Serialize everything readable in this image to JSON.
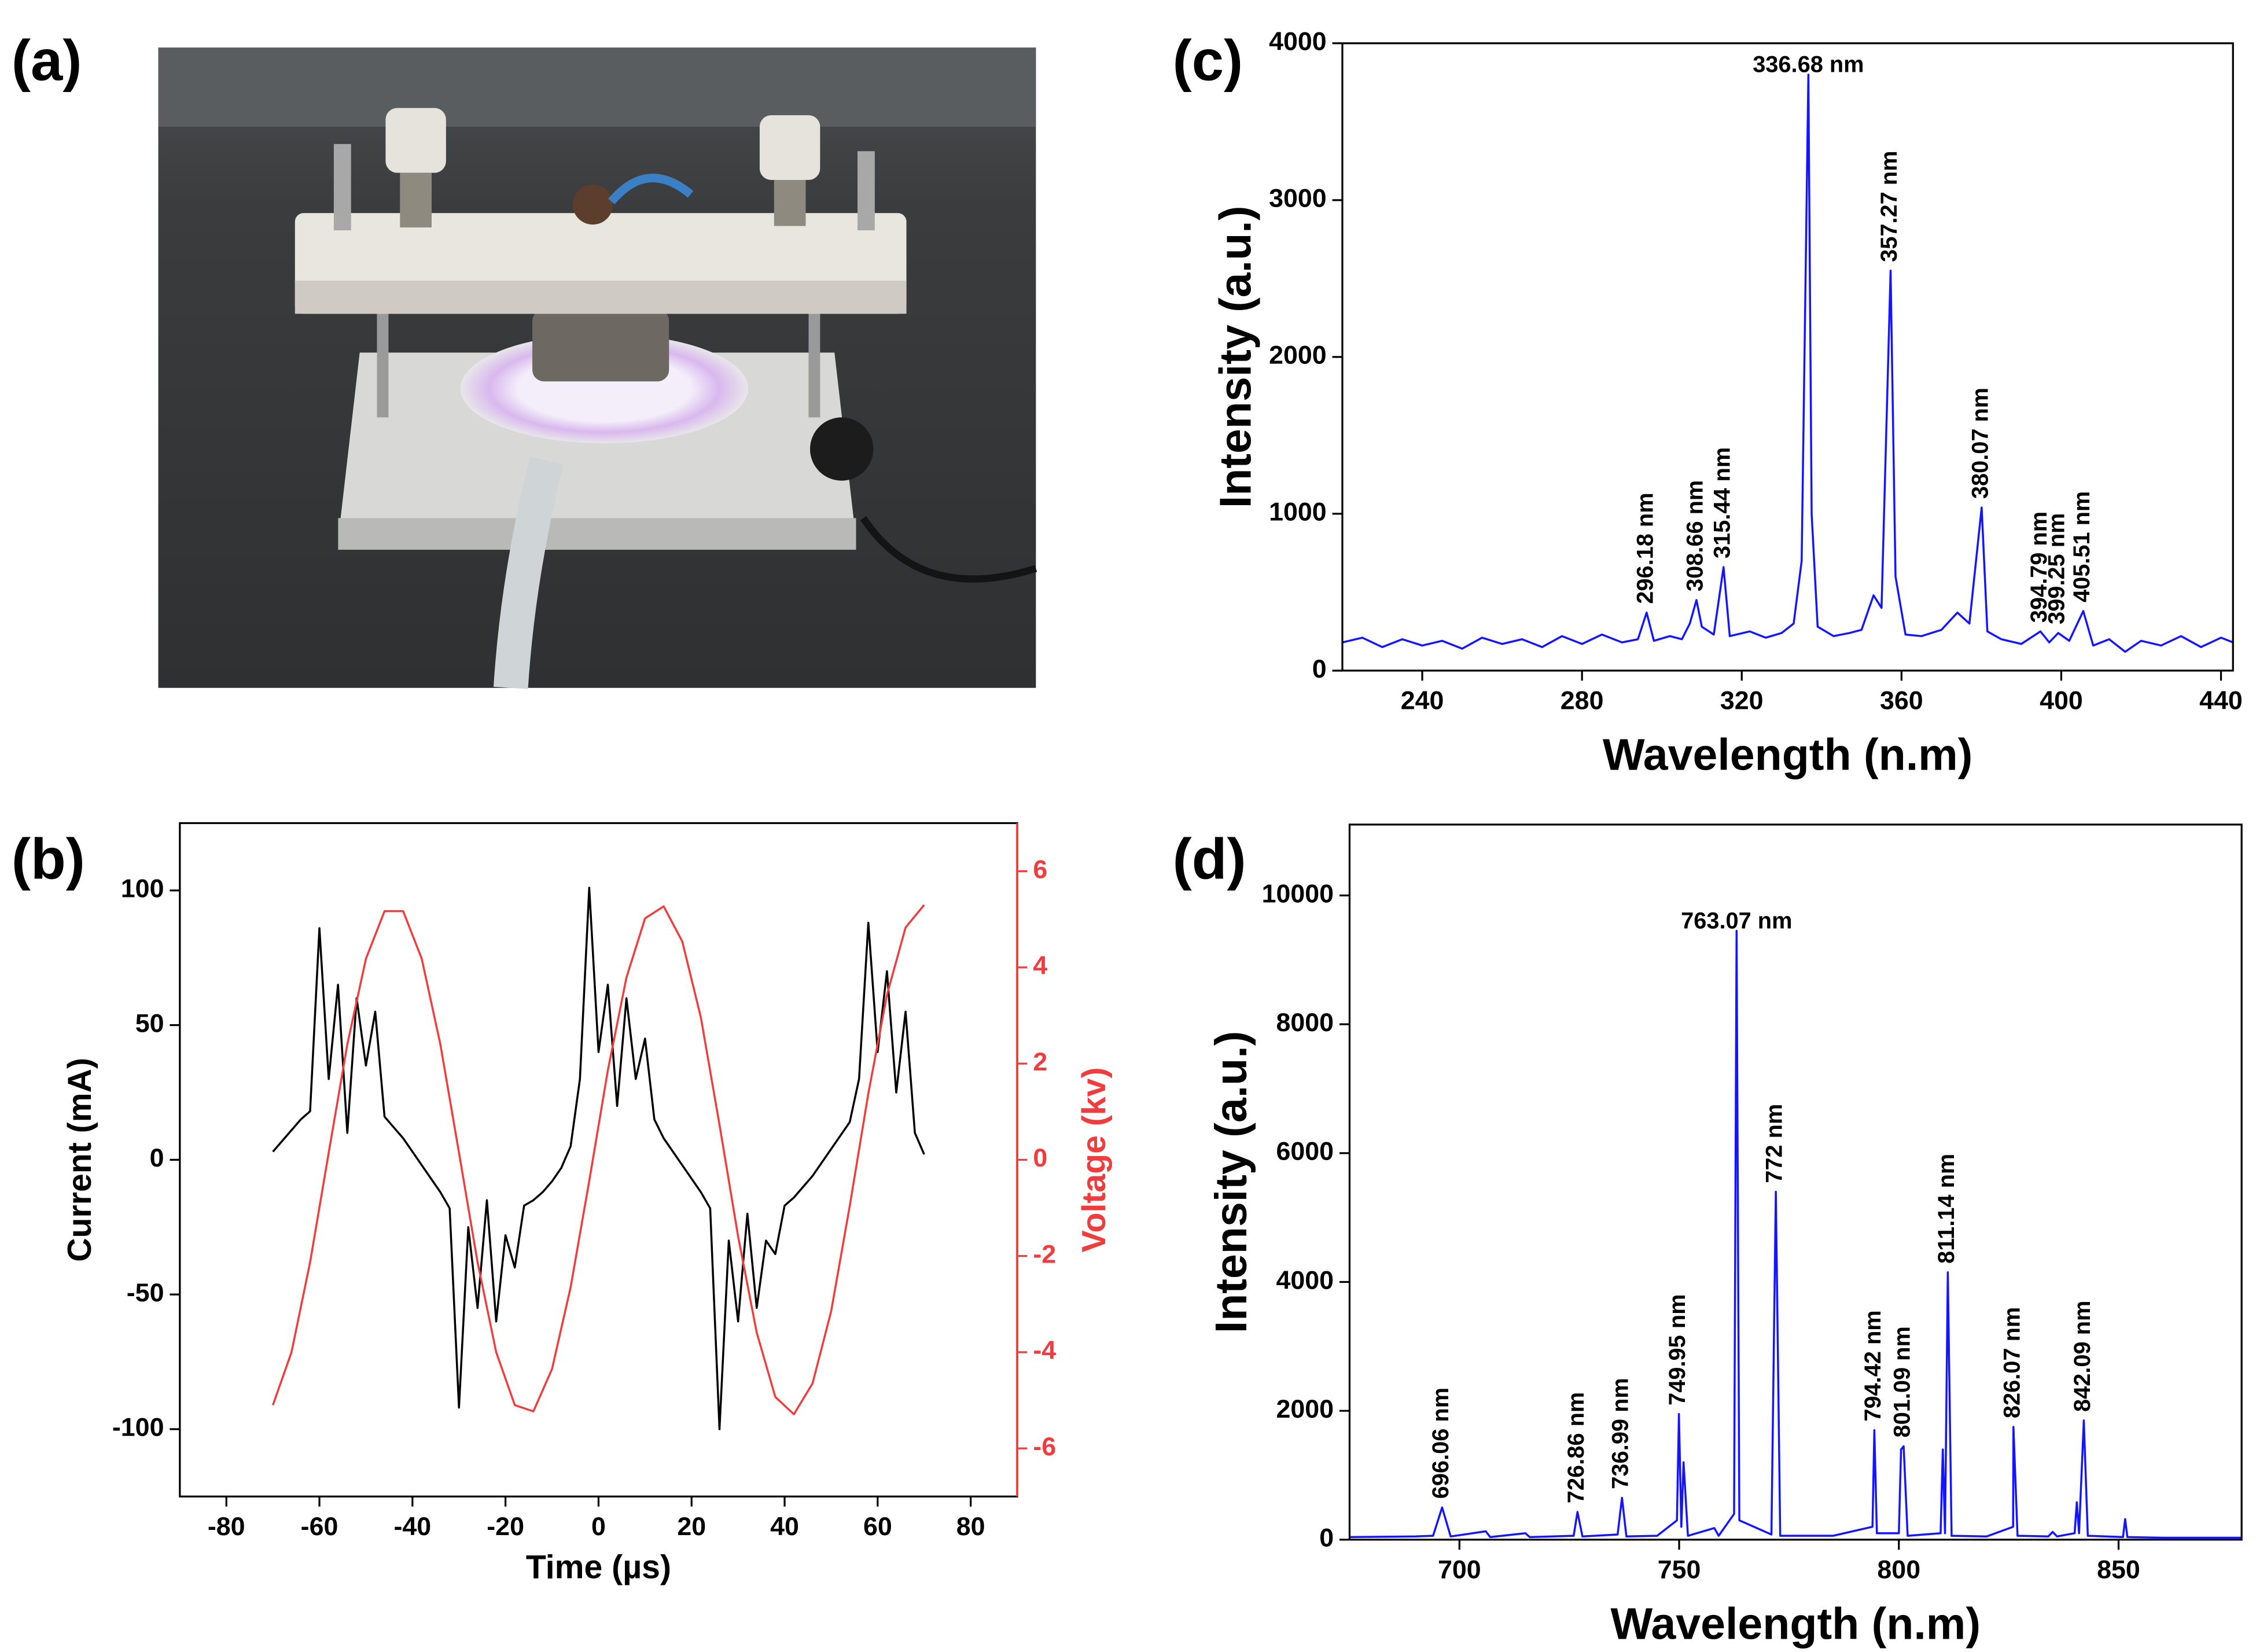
{
  "chart_data": [
    {
      "type": "photo",
      "label": "(a)"
    },
    {
      "type": "line",
      "label": "(b)",
      "xlabel": "Time (µs)",
      "ylabel": "Current (mA)",
      "y2label": "Voltage (kv)",
      "xlim": [
        -90,
        90
      ],
      "xticks": [
        -80,
        -60,
        -40,
        -20,
        0,
        20,
        40,
        60,
        80
      ],
      "ylim": [
        -125,
        125
      ],
      "yticks": [
        -100,
        -50,
        0,
        50,
        100
      ],
      "y2lim": [
        -7,
        7
      ],
      "y2ticks": [
        -6,
        -4,
        -2,
        0,
        2,
        4,
        6
      ],
      "series": [
        {
          "name": "Current",
          "color": "#000000",
          "x": [
            -70,
            -68,
            -66,
            -64,
            -62,
            -60,
            -58,
            -56,
            -54,
            -52,
            -50,
            -48,
            -46,
            -44,
            -42,
            -40,
            -38,
            -36,
            -34,
            -32,
            -30,
            -28,
            -26,
            -24,
            -22,
            -20,
            -18,
            -16,
            -14,
            -12,
            -10,
            -8,
            -6,
            -4,
            -2,
            0,
            2,
            4,
            6,
            8,
            10,
            12,
            14,
            16,
            18,
            20,
            22,
            24,
            26,
            28,
            30,
            32,
            34,
            36,
            38,
            40,
            42,
            44,
            46,
            48,
            50,
            52,
            54,
            56,
            58,
            60,
            62,
            64,
            66,
            68,
            70
          ],
          "values": [
            3,
            7,
            11,
            15,
            18,
            86,
            30,
            65,
            10,
            60,
            35,
            55,
            16,
            12,
            8,
            3,
            -2,
            -7,
            -12,
            -18,
            -92,
            -25,
            -55,
            -15,
            -60,
            -28,
            -40,
            -17,
            -15,
            -12,
            -8,
            -3,
            5,
            30,
            101,
            40,
            65,
            20,
            60,
            30,
            45,
            15,
            8,
            3,
            -2,
            -7,
            -12,
            -18,
            -100,
            -30,
            -60,
            -20,
            -55,
            -30,
            -35,
            -17,
            -14,
            -10,
            -6,
            -1,
            4,
            9,
            14,
            30,
            88,
            40,
            70,
            25,
            55,
            10,
            2
          ]
        },
        {
          "name": "Voltage",
          "color": "#f03c3c",
          "axis": "y2",
          "x": [
            -70,
            -66,
            -62,
            -58,
            -54,
            -50,
            -46,
            -42,
            -38,
            -34,
            -30,
            -26,
            -22,
            -18,
            -14,
            -10,
            -6,
            -2,
            2,
            6,
            10,
            14,
            18,
            22,
            26,
            30,
            34,
            38,
            42,
            46,
            50,
            54,
            58,
            62,
            66,
            70
          ],
          "values": [
            -5.1,
            -4.0,
            -2.13,
            0.15,
            2.4,
            4.18,
            5.17,
            5.17,
            4.18,
            2.4,
            0.15,
            -2.13,
            -4.0,
            -5.1,
            -5.23,
            -4.35,
            -2.65,
            -0.44,
            1.86,
            3.79,
            5.02,
            5.27,
            4.54,
            2.96,
            0.73,
            -1.59,
            -3.59,
            -4.93,
            -5.29,
            -4.65,
            -3.15,
            -0.96,
            1.38,
            3.43,
            4.83,
            5.3
          ]
        }
      ]
    },
    {
      "type": "line",
      "label": "(c)",
      "xlabel": "Wavelength (n.m)",
      "ylabel": "Intensity (a.u.)",
      "xlim": [
        220,
        443
      ],
      "xticks": [
        240,
        280,
        320,
        360,
        400,
        440
      ],
      "ylim": [
        0,
        4000
      ],
      "yticks": [
        0,
        1000,
        2000,
        3000,
        4000
      ],
      "series": [
        {
          "name": "Spectrum",
          "color": "#1414ff",
          "x": [
            220,
            225,
            230,
            235,
            240,
            245,
            250,
            255,
            260,
            265,
            270,
            275,
            280,
            285,
            290,
            294,
            296.18,
            298,
            302,
            305,
            307,
            308.66,
            310,
            313,
            315.44,
            317,
            322,
            326,
            330,
            333,
            335,
            336.68,
            337.5,
            339,
            343,
            347,
            350,
            353,
            355,
            357.27,
            358.5,
            361,
            365,
            370,
            374,
            377,
            380.07,
            381.5,
            385,
            390,
            394.79,
            397,
            399.25,
            402,
            405.51,
            408,
            412,
            416,
            420,
            425,
            430,
            435,
            440,
            443
          ],
          "values": [
            180,
            210,
            150,
            200,
            160,
            190,
            140,
            210,
            170,
            200,
            150,
            220,
            170,
            230,
            180,
            200,
            370,
            190,
            220,
            200,
            300,
            450,
            280,
            230,
            660,
            220,
            250,
            210,
            240,
            300,
            700,
            3800,
            1000,
            280,
            220,
            240,
            260,
            480,
            400,
            2550,
            600,
            230,
            220,
            260,
            370,
            300,
            1040,
            250,
            200,
            170,
            250,
            180,
            240,
            190,
            380,
            160,
            200,
            120,
            190,
            160,
            220,
            150,
            210,
            180
          ]
        }
      ],
      "annotations": [
        {
          "text": "336.68 nm",
          "x": 336.68,
          "y": 3800,
          "orientation": "horizontal"
        },
        {
          "text": "296.18 nm",
          "x": 296.18,
          "y": 370
        },
        {
          "text": "308.66 nm",
          "x": 308.66,
          "y": 450
        },
        {
          "text": "315.44 nm",
          "x": 315.44,
          "y": 660
        },
        {
          "text": "357.27 nm",
          "x": 357.27,
          "y": 2550
        },
        {
          "text": "380.07 nm",
          "x": 380.07,
          "y": 1040
        },
        {
          "text": "394.79 nm",
          "x": 394.79,
          "y": 250
        },
        {
          "text": "399.25 nm",
          "x": 399.25,
          "y": 240
        },
        {
          "text": "405.51 nm",
          "x": 405.51,
          "y": 380
        }
      ]
    },
    {
      "type": "line",
      "label": "(d)",
      "xlabel": "Wavelength (n.m)",
      "ylabel": "Intensity (a.u.)",
      "xlim": [
        675,
        878
      ],
      "xticks": [
        700,
        750,
        800,
        850
      ],
      "ylim": [
        0,
        11100
      ],
      "yticks": [
        0,
        2000,
        4000,
        6000,
        8000,
        10000
      ],
      "series": [
        {
          "name": "Spectrum",
          "color": "#1414ff",
          "x": [
            675,
            690,
            694,
            696.06,
            698,
            706,
            707,
            715,
            716,
            726,
            726.86,
            728,
            736,
            736.99,
            738,
            745,
            749.5,
            749.95,
            750.5,
            751,
            752,
            758,
            759,
            762.5,
            763.07,
            763.7,
            771,
            772,
            773,
            785,
            794,
            794.42,
            795,
            800,
            800.5,
            801.09,
            802,
            809.5,
            810,
            810.5,
            811.14,
            812,
            820,
            826,
            826.07,
            827,
            834,
            835,
            836,
            840,
            840.5,
            841,
            842.09,
            843,
            851,
            851.5,
            852,
            860,
            878
          ],
          "values": [
            40,
            50,
            60,
            500,
            50,
            130,
            40,
            100,
            40,
            60,
            430,
            50,
            80,
            650,
            50,
            60,
            300,
            1950,
            200,
            1200,
            60,
            180,
            60,
            400,
            9450,
            300,
            80,
            5400,
            60,
            60,
            200,
            1700,
            100,
            100,
            1400,
            1450,
            60,
            100,
            1400,
            100,
            4150,
            60,
            50,
            200,
            1750,
            60,
            50,
            120,
            50,
            100,
            580,
            100,
            1850,
            60,
            40,
            320,
            40,
            30,
            30
          ]
        }
      ],
      "annotations": [
        {
          "text": "763.07 nm",
          "x": 763.07,
          "y": 9450,
          "orientation": "horizontal"
        },
        {
          "text": "696.06 nm",
          "x": 696.06,
          "y": 500
        },
        {
          "text": "726.86 nm",
          "x": 726.86,
          "y": 430
        },
        {
          "text": "736.99 nm",
          "x": 736.99,
          "y": 650
        },
        {
          "text": "749.95 nm",
          "x": 749.95,
          "y": 1950
        },
        {
          "text": "772 nm",
          "x": 772,
          "y": 5400
        },
        {
          "text": "794.42 nm",
          "x": 794.42,
          "y": 1700
        },
        {
          "text": "801.09 nm",
          "x": 801.09,
          "y": 1450
        },
        {
          "text": "811.14 nm",
          "x": 811.14,
          "y": 4150
        },
        {
          "text": "826.07 nm",
          "x": 826.07,
          "y": 1750
        },
        {
          "text": "842.09 nm",
          "x": 842.09,
          "y": 1850
        }
      ]
    }
  ]
}
